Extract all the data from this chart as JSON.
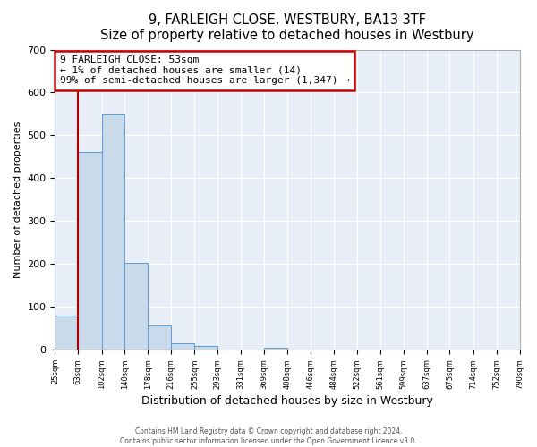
{
  "title": "9, FARLEIGH CLOSE, WESTBURY, BA13 3TF",
  "subtitle": "Size of property relative to detached houses in Westbury",
  "xlabel": "Distribution of detached houses by size in Westbury",
  "ylabel": "Number of detached properties",
  "bin_labels": [
    "25sqm",
    "63sqm",
    "102sqm",
    "140sqm",
    "178sqm",
    "216sqm",
    "255sqm",
    "293sqm",
    "331sqm",
    "369sqm",
    "408sqm",
    "446sqm",
    "484sqm",
    "522sqm",
    "561sqm",
    "599sqm",
    "637sqm",
    "675sqm",
    "714sqm",
    "752sqm",
    "790sqm"
  ],
  "bar_heights": [
    80,
    462,
    548,
    202,
    57,
    15,
    10,
    0,
    0,
    5,
    0,
    0,
    0,
    0,
    0,
    0,
    0,
    0,
    0,
    0
  ],
  "bar_color": "#c9daea",
  "bar_edge_color": "#5b9bd5",
  "ylim": [
    0,
    700
  ],
  "yticks": [
    0,
    100,
    200,
    300,
    400,
    500,
    600,
    700
  ],
  "vline_color": "#aa0000",
  "annotation_box_text": "9 FARLEIGH CLOSE: 53sqm\n← 1% of detached houses are smaller (14)\n99% of semi-detached houses are larger (1,347) →",
  "annotation_box_color": "#cc0000",
  "annotation_box_fill": "#ffffff",
  "footer_line1": "Contains HM Land Registry data © Crown copyright and database right 2024.",
  "footer_line2": "Contains public sector information licensed under the Open Government Licence v3.0.",
  "background_color": "#e8eef8",
  "figure_color": "#ffffff",
  "grid_color": "#ffffff",
  "bin_edges": [
    25,
    63,
    102,
    140,
    178,
    216,
    255,
    293,
    331,
    369,
    408,
    446,
    484,
    522,
    561,
    599,
    637,
    675,
    714,
    752,
    790
  ]
}
